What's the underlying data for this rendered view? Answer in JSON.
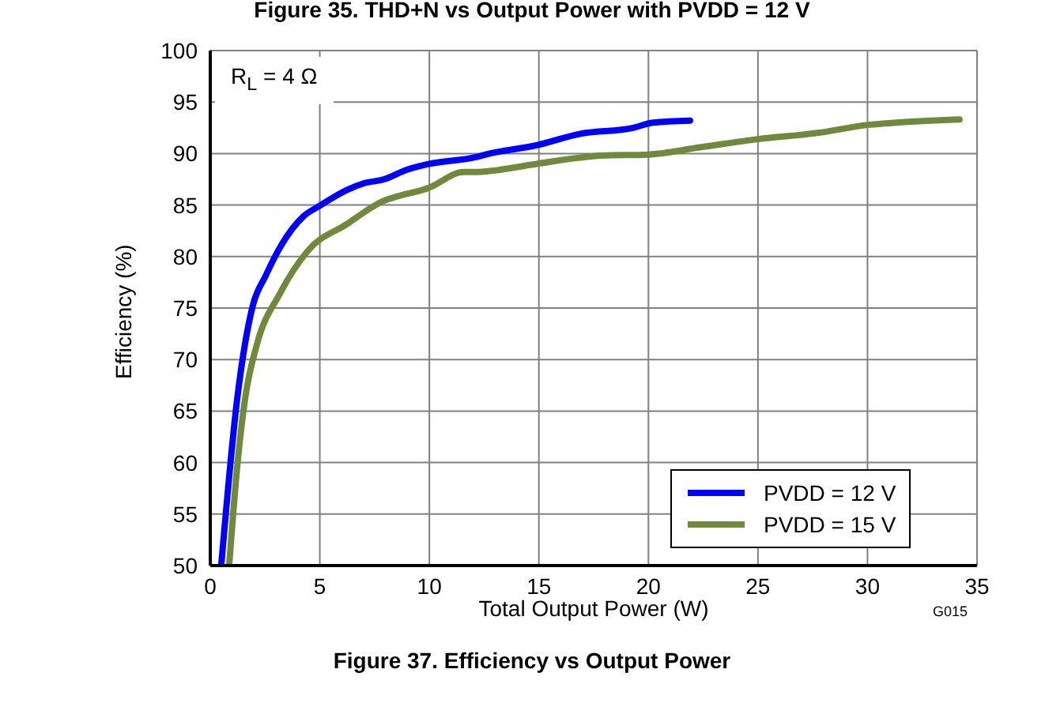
{
  "chart_data": {
    "type": "line",
    "title": "Figure 37. Efficiency vs Output Power",
    "xlabel": "Total Output Power (W)",
    "ylabel": "Efficiency (%)",
    "annotations": [
      "Figure 35. THD+N vs Output Power with PVDD = 12 V",
      "R$_{L}$ = 4 Ω",
      "G015"
    ],
    "series": [
      {
        "name": "PVDD = 12 V",
        "color": "#0000ff",
        "x": [
          0.5,
          1.23,
          1.95,
          2.52,
          3.24,
          4.25,
          4.97,
          6.27,
          6.99,
          7.93,
          8.94,
          10.0,
          12.0,
          12.76,
          14.9,
          16.85,
          19.3,
          20.2,
          21.9
        ],
        "values": [
          50,
          66.2,
          75.3,
          78.1,
          81.1,
          83.9,
          84.9,
          86.5,
          87.1,
          87.5,
          88.4,
          89.0,
          89.6,
          90,
          90.8,
          91.9,
          92.5,
          93.0,
          93.2
        ]
      },
      {
        "name": "PVDD = 15 V",
        "color": "#6f8a3c",
        "x": [
          0.87,
          1.23,
          1.59,
          2.16,
          3.15,
          4.47,
          6.27,
          7.71,
          10.0,
          11.56,
          12.0,
          14.9,
          16.85,
          17.8,
          20.0,
          22.35,
          25.0,
          27.7,
          30.1,
          31.3,
          34.2
        ],
        "values": [
          50.2,
          59.6,
          66.2,
          71.7,
          76.3,
          80.6,
          83.2,
          85.2,
          86.7,
          88.2,
          88.2,
          89.0,
          89.6,
          89.8,
          89.9,
          90.6,
          91.4,
          92.0,
          92.8,
          93.0,
          93.3
        ]
      }
    ],
    "xlim": [
      0,
      35
    ],
    "xticks": [
      0,
      5,
      10,
      15,
      20,
      25,
      30,
      35
    ],
    "ylim": [
      50,
      100
    ],
    "yticks": [
      50,
      55,
      60,
      65,
      70,
      75,
      80,
      85,
      90,
      95,
      100
    ],
    "grid": true,
    "legend": "bottom right",
    "marker": "none",
    "line_style": "solid"
  }
}
